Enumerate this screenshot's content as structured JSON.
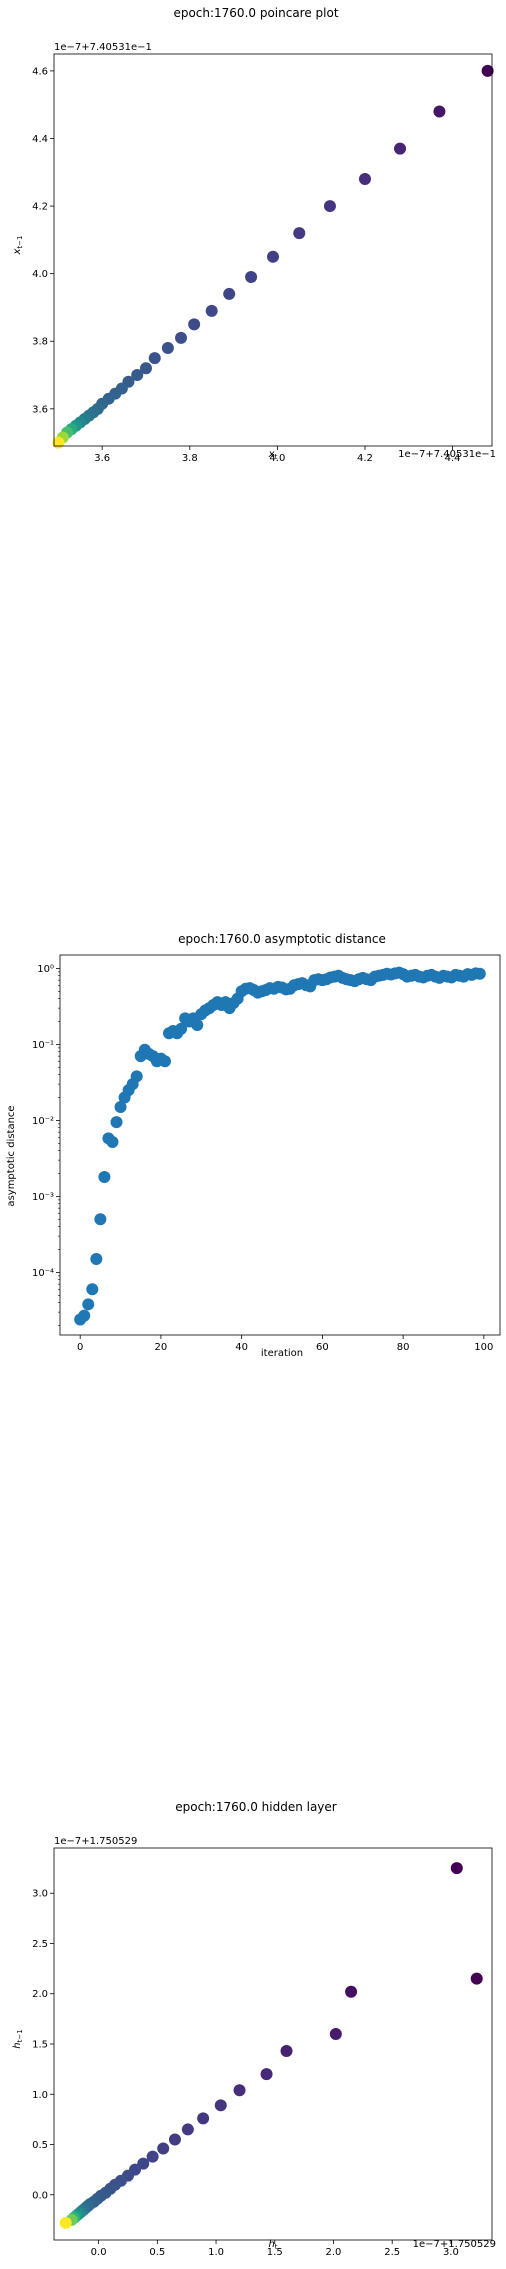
{
  "chart_data": [
    {
      "type": "scatter",
      "title": "epoch:1760.0 poincare plot",
      "xlabel": "x_t",
      "ylabel": "x_t−1",
      "x_offset_label": "1e−7+7.40531e−1",
      "y_offset_label": "1e−7+7.40531e−1",
      "xlim": [
        3.49,
        4.49
      ],
      "ylim": [
        3.49,
        4.65
      ],
      "xticks": [
        3.6,
        3.8,
        4.0,
        4.2,
        4.4
      ],
      "xtick_labels": [
        "3.6",
        "3.8",
        "4.0",
        "4.2",
        "4.4"
      ],
      "yticks": [
        3.6,
        3.8,
        4.0,
        4.2,
        4.4,
        4.6
      ],
      "ytick_labels": [
        "3.6",
        "3.8",
        "4.0",
        "4.2",
        "4.4",
        "4.6"
      ],
      "colormap": "viridis",
      "points": [
        {
          "x": 4.48,
          "y": 4.6,
          "c": 0.0
        },
        {
          "x": 4.37,
          "y": 4.48,
          "c": 0.06
        },
        {
          "x": 4.28,
          "y": 4.37,
          "c": 0.1
        },
        {
          "x": 4.2,
          "y": 4.28,
          "c": 0.13
        },
        {
          "x": 4.12,
          "y": 4.2,
          "c": 0.15
        },
        {
          "x": 4.05,
          "y": 4.12,
          "c": 0.17
        },
        {
          "x": 3.99,
          "y": 4.05,
          "c": 0.19
        },
        {
          "x": 3.94,
          "y": 3.99,
          "c": 0.2
        },
        {
          "x": 3.89,
          "y": 3.94,
          "c": 0.21
        },
        {
          "x": 3.85,
          "y": 3.89,
          "c": 0.22
        },
        {
          "x": 3.81,
          "y": 3.85,
          "c": 0.23
        },
        {
          "x": 3.78,
          "y": 3.81,
          "c": 0.24
        },
        {
          "x": 3.75,
          "y": 3.78,
          "c": 0.25
        },
        {
          "x": 3.72,
          "y": 3.75,
          "c": 0.26
        },
        {
          "x": 3.7,
          "y": 3.72,
          "c": 0.27
        },
        {
          "x": 3.68,
          "y": 3.7,
          "c": 0.28
        },
        {
          "x": 3.66,
          "y": 3.68,
          "c": 0.29
        },
        {
          "x": 3.645,
          "y": 3.66,
          "c": 0.3
        },
        {
          "x": 3.63,
          "y": 3.645,
          "c": 0.31
        },
        {
          "x": 3.615,
          "y": 3.63,
          "c": 0.32
        },
        {
          "x": 3.6,
          "y": 3.615,
          "c": 0.33
        },
        {
          "x": 3.59,
          "y": 3.6,
          "c": 0.35
        },
        {
          "x": 3.58,
          "y": 3.59,
          "c": 0.37
        },
        {
          "x": 3.57,
          "y": 3.58,
          "c": 0.39
        },
        {
          "x": 3.56,
          "y": 3.57,
          "c": 0.42
        },
        {
          "x": 3.55,
          "y": 3.56,
          "c": 0.46
        },
        {
          "x": 3.54,
          "y": 3.55,
          "c": 0.52
        },
        {
          "x": 3.53,
          "y": 3.54,
          "c": 0.6
        },
        {
          "x": 3.52,
          "y": 3.53,
          "c": 0.7
        },
        {
          "x": 3.51,
          "y": 3.515,
          "c": 0.85
        },
        {
          "x": 3.5,
          "y": 3.5,
          "c": 1.0
        }
      ]
    },
    {
      "type": "scatter",
      "title": "epoch:1760.0 asymptotic distance",
      "xlabel": "iteration",
      "ylabel": "asymptotic distance",
      "yscale": "log",
      "xlim": [
        -5,
        104
      ],
      "ylim": [
        1.5e-05,
        1.5
      ],
      "xticks": [
        0,
        20,
        40,
        60,
        80,
        100
      ],
      "xtick_labels": [
        "0",
        "20",
        "40",
        "60",
        "80",
        "100"
      ],
      "yticks": [
        0.0001,
        0.001,
        0.01,
        0.1,
        1
      ],
      "ytick_labels": [
        "10⁻⁴",
        "10⁻³",
        "10⁻²",
        "10⁻¹",
        "10⁰"
      ],
      "color": "#1f77b4",
      "x": [
        0,
        1,
        2,
        3,
        4,
        5,
        6,
        7,
        8,
        9,
        10,
        11,
        12,
        13,
        14,
        15,
        16,
        17,
        18,
        19,
        20,
        21,
        22,
        23,
        24,
        25,
        26,
        27,
        28,
        29,
        30,
        31,
        32,
        33,
        34,
        35,
        36,
        37,
        38,
        39,
        40,
        41,
        42,
        43,
        44,
        45,
        46,
        47,
        48,
        49,
        50,
        51,
        52,
        53,
        54,
        55,
        56,
        57,
        58,
        59,
        60,
        61,
        62,
        63,
        64,
        65,
        66,
        67,
        68,
        69,
        70,
        71,
        72,
        73,
        74,
        75,
        76,
        77,
        78,
        79,
        80,
        81,
        82,
        83,
        84,
        85,
        86,
        87,
        88,
        89,
        90,
        91,
        92,
        93,
        94,
        95,
        96,
        97,
        98,
        99
      ],
      "y": [
        2.4e-05,
        2.7e-05,
        3.8e-05,
        6e-05,
        0.00015,
        0.0005,
        0.0018,
        0.0058,
        0.0052,
        0.0095,
        0.015,
        0.02,
        0.025,
        0.03,
        0.038,
        0.07,
        0.085,
        0.075,
        0.07,
        0.06,
        0.065,
        0.06,
        0.14,
        0.15,
        0.14,
        0.16,
        0.22,
        0.2,
        0.22,
        0.18,
        0.25,
        0.28,
        0.3,
        0.33,
        0.36,
        0.33,
        0.36,
        0.3,
        0.35,
        0.4,
        0.5,
        0.54,
        0.55,
        0.52,
        0.48,
        0.5,
        0.52,
        0.55,
        0.54,
        0.57,
        0.56,
        0.53,
        0.54,
        0.6,
        0.62,
        0.64,
        0.6,
        0.58,
        0.7,
        0.72,
        0.7,
        0.72,
        0.76,
        0.78,
        0.8,
        0.75,
        0.72,
        0.7,
        0.68,
        0.72,
        0.75,
        0.72,
        0.7,
        0.78,
        0.8,
        0.82,
        0.85,
        0.83,
        0.86,
        0.88,
        0.84,
        0.78,
        0.8,
        0.82,
        0.78,
        0.76,
        0.8,
        0.82,
        0.78,
        0.75,
        0.8,
        0.78,
        0.76,
        0.82,
        0.8,
        0.78,
        0.84,
        0.82,
        0.86,
        0.85
      ]
    },
    {
      "type": "scatter",
      "title": "epoch:1760.0 hidden layer",
      "xlabel": "h_t",
      "ylabel": "h_t−1",
      "x_offset_label": "1e−7+1.750529",
      "y_offset_label": "1e−7+1.750529",
      "xlim": [
        -0.38,
        3.35
      ],
      "ylim": [
        -0.45,
        3.45
      ],
      "xticks": [
        0.0,
        0.5,
        1.0,
        1.5,
        2.0,
        2.5,
        3.0
      ],
      "xtick_labels": [
        "0.0",
        "0.5",
        "1.0",
        "1.5",
        "2.0",
        "2.5",
        "3.0"
      ],
      "yticks": [
        0.0,
        0.5,
        1.0,
        1.5,
        2.0,
        2.5,
        3.0
      ],
      "ytick_labels": [
        "0.0",
        "0.5",
        "1.0",
        "1.5",
        "2.0",
        "2.5",
        "3.0"
      ],
      "colormap": "viridis",
      "points": [
        {
          "x": 3.05,
          "y": 3.25,
          "c": 0.0
        },
        {
          "x": 3.22,
          "y": 2.15,
          "c": 0.0
        },
        {
          "x": 2.15,
          "y": 2.02,
          "c": 0.04
        },
        {
          "x": 2.02,
          "y": 1.6,
          "c": 0.07
        },
        {
          "x": 1.6,
          "y": 1.43,
          "c": 0.09
        },
        {
          "x": 1.43,
          "y": 1.2,
          "c": 0.11
        },
        {
          "x": 1.2,
          "y": 1.04,
          "c": 0.13
        },
        {
          "x": 1.04,
          "y": 0.89,
          "c": 0.15
        },
        {
          "x": 0.89,
          "y": 0.76,
          "c": 0.16
        },
        {
          "x": 0.76,
          "y": 0.65,
          "c": 0.17
        },
        {
          "x": 0.65,
          "y": 0.55,
          "c": 0.18
        },
        {
          "x": 0.55,
          "y": 0.46,
          "c": 0.19
        },
        {
          "x": 0.46,
          "y": 0.38,
          "c": 0.2
        },
        {
          "x": 0.38,
          "y": 0.31,
          "c": 0.21
        },
        {
          "x": 0.31,
          "y": 0.25,
          "c": 0.22
        },
        {
          "x": 0.25,
          "y": 0.19,
          "c": 0.23
        },
        {
          "x": 0.19,
          "y": 0.14,
          "c": 0.24
        },
        {
          "x": 0.14,
          "y": 0.1,
          "c": 0.25
        },
        {
          "x": 0.1,
          "y": 0.06,
          "c": 0.26
        },
        {
          "x": 0.06,
          "y": 0.02,
          "c": 0.27
        },
        {
          "x": 0.02,
          "y": -0.01,
          "c": 0.28
        },
        {
          "x": -0.01,
          "y": -0.04,
          "c": 0.29
        },
        {
          "x": -0.04,
          "y": -0.07,
          "c": 0.3
        },
        {
          "x": -0.07,
          "y": -0.09,
          "c": 0.32
        },
        {
          "x": -0.09,
          "y": -0.11,
          "c": 0.34
        },
        {
          "x": -0.11,
          "y": -0.13,
          "c": 0.36
        },
        {
          "x": -0.13,
          "y": -0.15,
          "c": 0.39
        },
        {
          "x": -0.15,
          "y": -0.17,
          "c": 0.43
        },
        {
          "x": -0.17,
          "y": -0.19,
          "c": 0.48
        },
        {
          "x": -0.19,
          "y": -0.21,
          "c": 0.55
        },
        {
          "x": -0.21,
          "y": -0.23,
          "c": 0.64
        },
        {
          "x": -0.23,
          "y": -0.25,
          "c": 0.78
        },
        {
          "x": -0.28,
          "y": -0.28,
          "c": 1.0
        }
      ]
    }
  ]
}
